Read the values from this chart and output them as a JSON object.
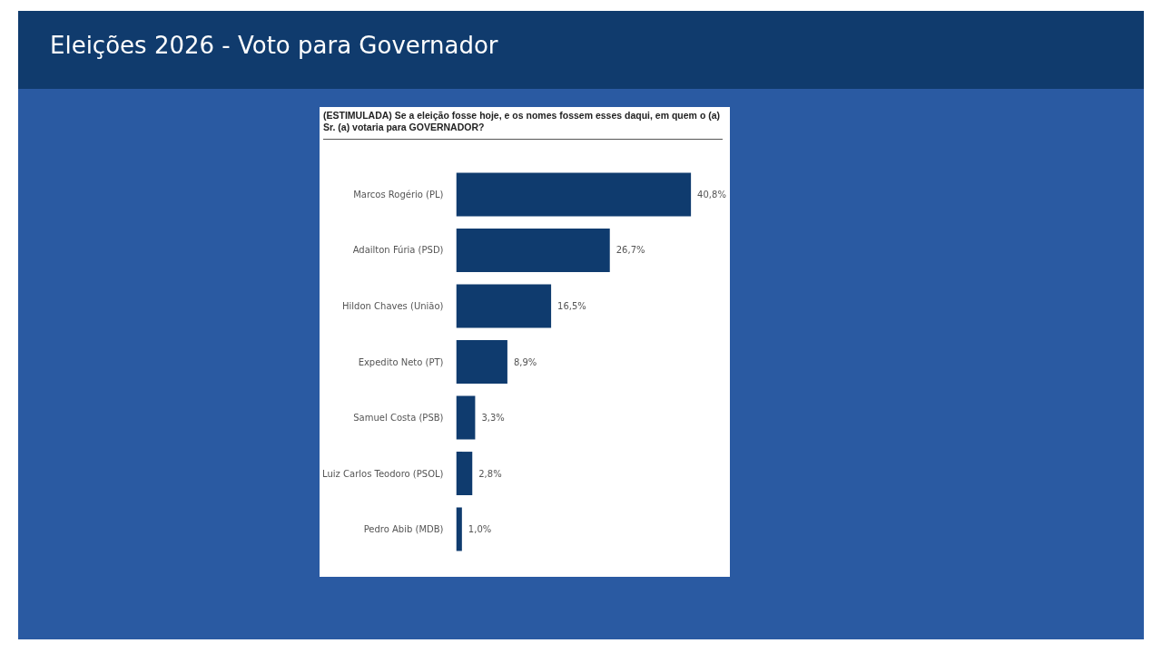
{
  "chart_data": {
    "type": "bar",
    "orientation": "horizontal",
    "title": "Eleições 2026 - Voto para Governador",
    "subtitle": "(ESTIMULADA) Se a eleição fosse hoje, e os nomes fossem esses daqui, em quem o (a) Sr. (a) votaria para GOVERNADOR?",
    "categories": [
      "Marcos Rogério (PL)",
      "Adailton Fúria (PSD)",
      "Hildon Chaves (União)",
      "Expedito Neto (PT)",
      "Samuel Costa (PSB)",
      "Luiz Carlos Teodoro (PSOL)",
      "Pedro Abib (MDB)"
    ],
    "values": [
      40.8,
      26.7,
      16.5,
      8.9,
      3.3,
      2.8,
      1.0
    ],
    "value_labels": [
      "40,8%",
      "26,7%",
      "16,5%",
      "8,9%",
      "3,3%",
      "2,8%",
      "1,0%"
    ],
    "color": "#0f3b6e",
    "tick_labels": "y"
  }
}
